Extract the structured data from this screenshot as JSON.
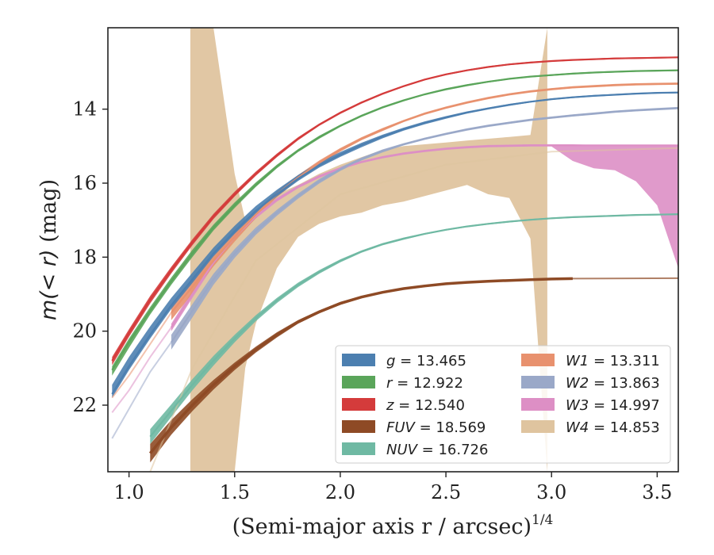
{
  "chart_data": {
    "type": "line",
    "xlabel": "(Semi-major axis r / arcsec)",
    "xlabel_power": "1/4",
    "ylabel_prefix": "m(< r)",
    "ylabel_unit": " (mag)",
    "xlim": [
      0.9,
      3.6
    ],
    "ylim": [
      23.8,
      11.8
    ],
    "y_inverted": true,
    "xticks": [
      1.0,
      1.5,
      2.0,
      2.5,
      3.0,
      3.5
    ],
    "xtick_labels": [
      "1.0",
      "1.5",
      "2.0",
      "2.5",
      "3.0",
      "3.5"
    ],
    "yticks": [
      14,
      16,
      18,
      20,
      22
    ],
    "ytick_labels": [
      "14",
      "16",
      "18",
      "20",
      "22"
    ],
    "grid": false,
    "legend_position": "lower-right",
    "series": [
      {
        "name": "g",
        "value": "13.465",
        "color": "#4c7fb0",
        "x": [
          0.92,
          1.0,
          1.1,
          1.2,
          1.3,
          1.4,
          1.5,
          1.6,
          1.7,
          1.8,
          1.9,
          2.0,
          2.1,
          2.2,
          2.3,
          2.4,
          2.5,
          2.6,
          2.7,
          2.8,
          2.9,
          3.0,
          3.1,
          3.2,
          3.3,
          3.4,
          3.5,
          3.6
        ],
        "y": [
          21.7,
          20.95,
          20.1,
          19.3,
          18.6,
          17.9,
          17.3,
          16.75,
          16.3,
          15.88,
          15.52,
          15.23,
          14.97,
          14.74,
          14.54,
          14.37,
          14.22,
          14.09,
          13.98,
          13.88,
          13.8,
          13.73,
          13.68,
          13.64,
          13.61,
          13.58,
          13.56,
          13.55
        ],
        "y_upper": [
          21.45,
          20.7,
          19.87,
          19.1,
          18.42,
          17.74,
          17.15,
          16.62,
          16.18,
          15.78,
          15.44,
          15.16,
          14.91,
          14.69,
          14.5,
          14.33,
          14.19,
          14.06,
          13.96,
          13.86,
          13.78,
          13.71,
          13.66,
          13.62,
          13.59,
          13.56,
          13.54,
          13.53
        ],
        "y_lower": [
          21.8,
          21.05,
          20.2,
          19.4,
          18.7,
          17.98,
          17.37,
          16.82,
          16.36,
          15.94,
          15.58,
          15.29,
          15.03,
          14.79,
          14.58,
          14.41,
          14.26,
          14.12,
          14.01,
          13.91,
          13.82,
          13.75,
          13.7,
          13.66,
          13.63,
          13.6,
          13.58,
          13.57
        ]
      },
      {
        "name": "r",
        "value": "12.922",
        "color": "#5aa55a",
        "x": [
          0.92,
          1.0,
          1.1,
          1.2,
          1.3,
          1.4,
          1.5,
          1.6,
          1.7,
          1.8,
          1.9,
          2.0,
          2.1,
          2.2,
          2.3,
          2.4,
          2.5,
          2.6,
          2.7,
          2.8,
          2.9,
          3.0,
          3.1,
          3.2,
          3.3,
          3.4,
          3.5,
          3.6
        ],
        "y": [
          21.05,
          20.3,
          19.45,
          18.65,
          17.9,
          17.2,
          16.6,
          16.05,
          15.55,
          15.12,
          14.76,
          14.45,
          14.18,
          13.95,
          13.76,
          13.6,
          13.46,
          13.35,
          13.26,
          13.18,
          13.12,
          13.08,
          13.04,
          13.01,
          12.99,
          12.97,
          12.96,
          12.95
        ],
        "y_upper": [
          20.95,
          20.2,
          19.35,
          18.55,
          17.8,
          17.12,
          16.52,
          15.98,
          15.5,
          15.08,
          14.72,
          14.42,
          14.15,
          13.93,
          13.74,
          13.58,
          13.44,
          13.33,
          13.24,
          13.16,
          13.1,
          13.06,
          13.02,
          12.99,
          12.97,
          12.95,
          12.94,
          12.93
        ],
        "y_lower": [
          21.2,
          20.45,
          19.55,
          18.75,
          18.0,
          17.28,
          16.67,
          16.1,
          15.6,
          15.16,
          14.8,
          14.48,
          14.21,
          13.98,
          13.79,
          13.62,
          13.49,
          13.38,
          13.28,
          13.2,
          13.14,
          13.1,
          13.06,
          13.03,
          13.01,
          12.99,
          12.98,
          12.97
        ]
      },
      {
        "name": "z",
        "value": "12.540",
        "color": "#d43b3b",
        "x": [
          0.92,
          1.0,
          1.1,
          1.2,
          1.3,
          1.4,
          1.5,
          1.6,
          1.7,
          1.8,
          1.9,
          2.0,
          2.1,
          2.2,
          2.3,
          2.4,
          2.5,
          2.6,
          2.7,
          2.8,
          2.9,
          3.0,
          3.1,
          3.2,
          3.3,
          3.4,
          3.5,
          3.6
        ],
        "y": [
          20.8,
          20.05,
          19.15,
          18.35,
          17.6,
          16.9,
          16.3,
          15.75,
          15.25,
          14.8,
          14.42,
          14.1,
          13.82,
          13.58,
          13.38,
          13.2,
          13.06,
          12.95,
          12.86,
          12.79,
          12.74,
          12.7,
          12.67,
          12.65,
          12.63,
          12.62,
          12.61,
          12.6
        ],
        "y_upper": [
          20.7,
          19.95,
          19.05,
          18.26,
          17.52,
          16.83,
          16.23,
          15.69,
          15.2,
          14.76,
          14.39,
          14.07,
          13.8,
          13.56,
          13.36,
          13.18,
          13.04,
          12.93,
          12.84,
          12.77,
          12.72,
          12.68,
          12.65,
          12.63,
          12.61,
          12.6,
          12.59,
          12.58
        ],
        "y_lower": [
          20.92,
          20.15,
          19.25,
          18.44,
          17.68,
          16.97,
          16.36,
          15.8,
          15.3,
          14.84,
          14.45,
          14.13,
          13.85,
          13.61,
          13.4,
          13.22,
          13.08,
          12.97,
          12.88,
          12.81,
          12.76,
          12.72,
          12.69,
          12.67,
          12.65,
          12.64,
          12.63,
          12.62
        ]
      },
      {
        "name": "FUV",
        "value": "18.569",
        "color": "#8e4a25",
        "x": [
          1.1,
          1.2,
          1.3,
          1.4,
          1.5,
          1.6,
          1.7,
          1.8,
          1.9,
          2.0,
          2.1,
          2.2,
          2.3,
          2.4,
          2.5,
          2.6,
          2.7,
          2.8,
          2.9,
          3.0,
          3.1
        ],
        "y": [
          23.3,
          22.6,
          22.0,
          21.45,
          20.95,
          20.5,
          20.1,
          19.75,
          19.48,
          19.25,
          19.08,
          18.95,
          18.85,
          18.78,
          18.72,
          18.68,
          18.65,
          18.63,
          18.61,
          18.59,
          18.58
        ],
        "y_upper": [
          23.05,
          22.4,
          21.84,
          21.32,
          20.85,
          20.42,
          20.03,
          19.7,
          19.44,
          19.21,
          19.05,
          18.92,
          18.82,
          18.75,
          18.7,
          18.66,
          18.63,
          18.61,
          18.59,
          18.57,
          18.56
        ],
        "y_lower": [
          23.55,
          22.8,
          22.16,
          21.58,
          21.05,
          20.58,
          20.17,
          19.8,
          19.52,
          19.29,
          19.11,
          18.98,
          18.88,
          18.81,
          18.74,
          18.7,
          18.67,
          18.65,
          18.63,
          18.61,
          18.6
        ],
        "extension": {
          "x": [
            3.1,
            3.6
          ],
          "y": [
            18.58,
            18.57
          ]
        }
      },
      {
        "name": "NUV",
        "value": "16.726",
        "color": "#6fb9a3",
        "x": [
          1.1,
          1.2,
          1.3,
          1.4,
          1.5,
          1.6,
          1.7,
          1.8,
          1.9,
          2.0,
          2.1,
          2.2,
          2.3,
          2.4,
          2.5,
          2.6,
          2.7,
          2.8,
          2.9,
          3.0,
          3.1,
          3.2,
          3.3,
          3.4,
          3.5,
          3.6
        ],
        "y": [
          22.85,
          22.15,
          21.45,
          20.8,
          20.2,
          19.65,
          19.17,
          18.75,
          18.4,
          18.1,
          17.85,
          17.65,
          17.5,
          17.37,
          17.26,
          17.17,
          17.1,
          17.04,
          16.99,
          16.95,
          16.92,
          16.9,
          16.88,
          16.86,
          16.85,
          16.84
        ],
        "y_upper": [
          22.65,
          21.98,
          21.3,
          20.67,
          20.1,
          19.57,
          19.1,
          18.69,
          18.35,
          18.06,
          17.82,
          17.62,
          17.47,
          17.35,
          17.24,
          17.15,
          17.08,
          17.02,
          16.97,
          16.93,
          16.9,
          16.88,
          16.86,
          16.84,
          16.83,
          16.82
        ],
        "y_lower": [
          23.05,
          22.32,
          21.6,
          20.93,
          20.3,
          19.73,
          19.24,
          18.81,
          18.45,
          18.14,
          17.88,
          17.68,
          17.53,
          17.39,
          17.28,
          17.19,
          17.12,
          17.06,
          17.01,
          16.97,
          16.94,
          16.92,
          16.9,
          16.88,
          16.87,
          16.86
        ]
      },
      {
        "name": "W1",
        "value": "13.311",
        "color": "#e8916e",
        "x": [
          1.2,
          1.3,
          1.4,
          1.5,
          1.6,
          1.7,
          1.8,
          1.9,
          2.0,
          2.1,
          2.2,
          2.3,
          2.4,
          2.5,
          2.6,
          2.7,
          2.8,
          2.9,
          3.0,
          3.1,
          3.2,
          3.3,
          3.4,
          3.5,
          3.6
        ],
        "y": [
          19.5,
          18.8,
          18.1,
          17.45,
          16.85,
          16.3,
          15.85,
          15.45,
          15.1,
          14.8,
          14.55,
          14.32,
          14.12,
          13.96,
          13.82,
          13.7,
          13.6,
          13.52,
          13.46,
          13.41,
          13.38,
          13.35,
          13.33,
          13.32,
          13.31
        ],
        "y_upper": [
          19.3,
          18.62,
          17.95,
          17.32,
          16.75,
          16.22,
          15.78,
          15.39,
          15.05,
          14.76,
          14.51,
          14.29,
          14.09,
          13.93,
          13.79,
          13.67,
          13.57,
          13.49,
          13.43,
          13.38,
          13.35,
          13.32,
          13.3,
          13.29,
          13.28
        ],
        "y_lower": [
          19.7,
          18.98,
          18.25,
          17.58,
          16.95,
          16.38,
          15.92,
          15.51,
          15.15,
          14.84,
          14.59,
          14.35,
          14.15,
          13.99,
          13.85,
          13.73,
          13.63,
          13.55,
          13.49,
          13.44,
          13.41,
          13.38,
          13.36,
          13.35,
          13.34
        ],
        "faint": {
          "x": [
            0.92,
            1.0,
            1.1,
            1.2
          ],
          "y": [
            21.8,
            21.2,
            20.35,
            19.5
          ]
        }
      },
      {
        "name": "W2",
        "value": "13.863",
        "color": "#9aa8c8",
        "x": [
          1.2,
          1.3,
          1.4,
          1.5,
          1.6,
          1.7,
          1.8,
          1.9,
          2.0,
          2.1,
          2.2,
          2.3,
          2.4,
          2.5,
          2.6,
          2.7,
          2.8,
          2.9,
          3.0,
          3.1,
          3.2,
          3.3,
          3.4,
          3.5,
          3.6
        ],
        "y": [
          20.3,
          19.45,
          18.6,
          17.9,
          17.3,
          16.8,
          16.35,
          15.95,
          15.62,
          15.35,
          15.13,
          14.95,
          14.8,
          14.67,
          14.55,
          14.45,
          14.37,
          14.29,
          14.23,
          14.17,
          14.12,
          14.07,
          14.03,
          14.0,
          13.97
        ],
        "y_upper": [
          20.1,
          19.27,
          18.45,
          17.78,
          17.2,
          16.72,
          16.28,
          15.89,
          15.57,
          15.31,
          15.09,
          14.92,
          14.77,
          14.64,
          14.52,
          14.42,
          14.34,
          14.26,
          14.2,
          14.14,
          14.09,
          14.04,
          14.0,
          13.97,
          13.94
        ],
        "y_lower": [
          20.5,
          19.63,
          18.75,
          18.02,
          17.4,
          16.88,
          16.42,
          16.01,
          15.67,
          15.39,
          15.17,
          14.98,
          14.83,
          14.7,
          14.58,
          14.48,
          14.4,
          14.32,
          14.26,
          14.2,
          14.15,
          14.1,
          14.06,
          14.03,
          14.0
        ],
        "faint": {
          "x": [
            0.92,
            1.0,
            1.1,
            1.2
          ],
          "y": [
            22.9,
            22.1,
            21.1,
            20.3
          ]
        }
      },
      {
        "name": "W3",
        "value": "14.997",
        "color": "#dd8fc5",
        "x": [
          1.2,
          1.3,
          1.4,
          1.5,
          1.6,
          1.7,
          1.8,
          1.9,
          2.0,
          2.1,
          2.2,
          2.3,
          2.4,
          2.5,
          2.6,
          2.7,
          2.8,
          2.9,
          3.0,
          3.1,
          3.2,
          3.3,
          3.4,
          3.5,
          3.6
        ],
        "y": [
          19.9,
          19.0,
          18.15,
          17.45,
          16.9,
          16.45,
          16.1,
          15.82,
          15.6,
          15.43,
          15.3,
          15.2,
          15.13,
          15.07,
          15.03,
          15.0,
          14.99,
          14.98,
          14.98,
          14.98,
          14.98,
          14.98,
          14.98,
          14.98,
          14.98
        ],
        "y_upper": [
          19.8,
          18.9,
          18.07,
          17.38,
          16.84,
          16.4,
          16.06,
          15.78,
          15.57,
          15.4,
          15.27,
          15.17,
          15.1,
          15.04,
          15.0,
          14.97,
          14.96,
          14.95,
          14.95,
          14.95,
          14.97,
          14.96,
          14.96,
          14.96,
          14.96
        ],
        "y_lower": [
          20.0,
          19.1,
          18.23,
          17.52,
          16.96,
          16.5,
          16.14,
          15.86,
          15.63,
          15.46,
          15.33,
          15.23,
          15.16,
          15.1,
          15.06,
          15.03,
          15.02,
          15.01,
          15.01,
          15.4,
          15.6,
          15.65,
          15.95,
          16.6,
          18.3
        ],
        "faint": {
          "x": [
            0.92,
            1.0,
            1.1,
            1.2
          ],
          "y": [
            22.2,
            21.6,
            20.7,
            19.9
          ]
        }
      },
      {
        "name": "W4",
        "value": "14.853",
        "color": "#dfc49f",
        "x": [
          1.29,
          1.4,
          1.5,
          1.55,
          1.6,
          1.7,
          1.8,
          1.9,
          2.0,
          2.1,
          2.2,
          2.3,
          2.4,
          2.5,
          2.6,
          2.7,
          2.8,
          2.9,
          2.98
        ],
        "y_upper": [
          11.8,
          11.8,
          15.75,
          17.0,
          16.85,
          16.3,
          16.05,
          15.75,
          15.5,
          15.3,
          15.1,
          15.0,
          14.95,
          14.9,
          14.85,
          14.8,
          14.75,
          14.7,
          11.8
        ],
        "y_lower": [
          23.8,
          23.8,
          23.8,
          21.0,
          19.8,
          18.3,
          17.45,
          17.1,
          16.9,
          16.8,
          16.6,
          16.5,
          16.35,
          16.2,
          16.05,
          16.3,
          16.4,
          17.5,
          23.8
        ],
        "faint": {
          "x": [
            1.1,
            1.3,
            1.6,
            2.0,
            2.5,
            3.0,
            3.6
          ],
          "y": [
            23.8,
            21.0,
            18.1,
            16.3,
            15.5,
            15.15,
            15.05
          ]
        }
      }
    ]
  }
}
